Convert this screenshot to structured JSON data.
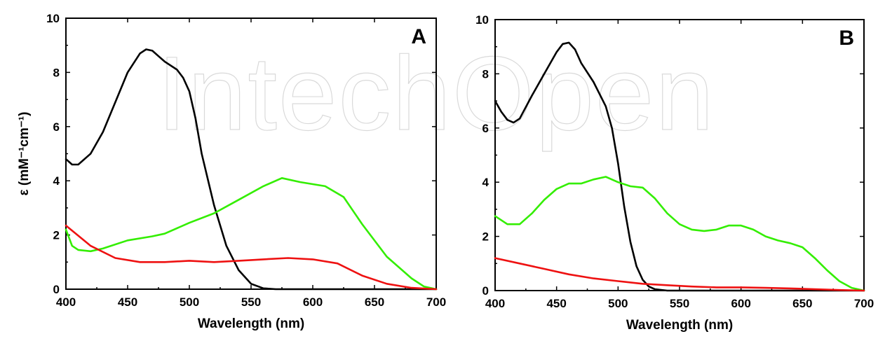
{
  "watermark": "IntechOpen",
  "colors": {
    "black_series": "#000000",
    "green_series": "#33ee00",
    "red_series": "#ee1111",
    "axis": "#000000"
  },
  "chart_data": [
    {
      "type": "line",
      "panel_label": "A",
      "xlabel": "Wavelength (nm)",
      "ylabel": "ε (mM⁻¹cm⁻¹)",
      "xlim": [
        400,
        700
      ],
      "ylim": [
        0,
        10
      ],
      "xticks": [
        "400",
        "450",
        "500",
        "550",
        "600",
        "650",
        "700"
      ],
      "yticks": [
        "0",
        "2",
        "4",
        "6",
        "8",
        "10"
      ],
      "series": [
        {
          "color": "#000000",
          "x": [
            400,
            405,
            410,
            420,
            430,
            440,
            450,
            460,
            465,
            470,
            475,
            480,
            490,
            495,
            500,
            505,
            510,
            520,
            530,
            540,
            550,
            560,
            570,
            600,
            700
          ],
          "y": [
            4.8,
            4.6,
            4.6,
            5.0,
            5.8,
            6.9,
            8.0,
            8.7,
            8.85,
            8.8,
            8.6,
            8.4,
            8.1,
            7.8,
            7.3,
            6.3,
            5.0,
            3.1,
            1.6,
            0.7,
            0.2,
            0.03,
            0,
            0,
            0
          ]
        },
        {
          "color": "#33ee00",
          "x": [
            400,
            405,
            410,
            420,
            430,
            450,
            470,
            480,
            500,
            520,
            540,
            560,
            575,
            590,
            610,
            625,
            640,
            660,
            680,
            690,
            700
          ],
          "y": [
            2.2,
            1.6,
            1.45,
            1.4,
            1.5,
            1.8,
            1.95,
            2.05,
            2.45,
            2.8,
            3.3,
            3.8,
            4.1,
            3.95,
            3.8,
            3.4,
            2.4,
            1.2,
            0.4,
            0.1,
            0.0
          ],
          "name": ""
        },
        {
          "color": "#ee1111",
          "x": [
            400,
            420,
            440,
            460,
            480,
            500,
            520,
            540,
            560,
            580,
            600,
            620,
            640,
            660,
            680,
            700
          ],
          "y": [
            2.35,
            1.6,
            1.15,
            1.0,
            1.0,
            1.05,
            1.0,
            1.05,
            1.1,
            1.15,
            1.1,
            0.95,
            0.5,
            0.2,
            0.05,
            0.0
          ]
        }
      ]
    },
    {
      "type": "line",
      "panel_label": "B",
      "xlabel": "Wavelength (nm)",
      "ylabel": "",
      "xlim": [
        400,
        700
      ],
      "ylim": [
        0,
        10
      ],
      "xticks": [
        "400",
        "450",
        "500",
        "550",
        "600",
        "650",
        "700"
      ],
      "yticks": [
        "0",
        "2",
        "4",
        "6",
        "8",
        "10"
      ],
      "series": [
        {
          "color": "#000000",
          "x": [
            400,
            405,
            410,
            415,
            420,
            430,
            440,
            450,
            455,
            460,
            465,
            470,
            480,
            490,
            495,
            500,
            505,
            510,
            515,
            520,
            525,
            530,
            540,
            550,
            700
          ],
          "y": [
            7.0,
            6.6,
            6.3,
            6.2,
            6.35,
            7.2,
            8.0,
            8.8,
            9.1,
            9.15,
            8.9,
            8.4,
            7.7,
            6.8,
            6.0,
            4.7,
            3.1,
            1.8,
            0.9,
            0.4,
            0.15,
            0.05,
            0.0,
            0.0,
            0.0
          ]
        },
        {
          "color": "#33ee00",
          "x": [
            400,
            410,
            420,
            430,
            440,
            450,
            460,
            470,
            480,
            490,
            500,
            510,
            520,
            530,
            540,
            550,
            560,
            570,
            580,
            590,
            600,
            610,
            620,
            630,
            640,
            650,
            660,
            670,
            680,
            690,
            700
          ],
          "y": [
            2.75,
            2.45,
            2.45,
            2.85,
            3.35,
            3.75,
            3.95,
            3.95,
            4.1,
            4.2,
            4.0,
            3.85,
            3.8,
            3.4,
            2.85,
            2.45,
            2.25,
            2.2,
            2.25,
            2.4,
            2.4,
            2.25,
            2.0,
            1.85,
            1.75,
            1.6,
            1.2,
            0.75,
            0.35,
            0.1,
            0.0
          ]
        },
        {
          "color": "#ee1111",
          "x": [
            400,
            420,
            440,
            460,
            480,
            500,
            520,
            540,
            560,
            580,
            600,
            620,
            640,
            660,
            680,
            700
          ],
          "y": [
            1.2,
            1.0,
            0.8,
            0.6,
            0.45,
            0.35,
            0.25,
            0.2,
            0.15,
            0.12,
            0.12,
            0.1,
            0.08,
            0.05,
            0.02,
            0.0
          ]
        }
      ]
    }
  ]
}
